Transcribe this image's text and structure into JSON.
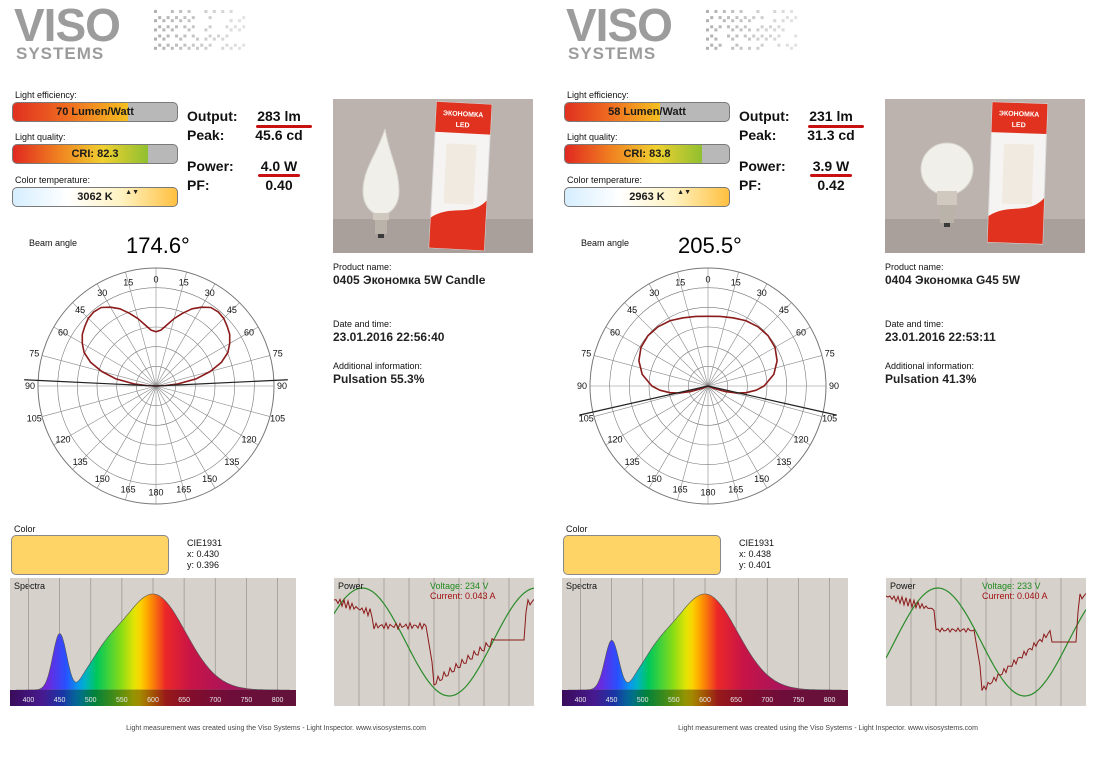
{
  "reports": [
    {
      "logo": {
        "main": "VISO",
        "sub": "SYSTEMS"
      },
      "efficiency": {
        "label": "Light efficiency:",
        "value": "70 Lumen/Watt",
        "level": 0.7
      },
      "quality": {
        "label": "Light quality:",
        "value": "CRI:  82.3",
        "level": 0.823
      },
      "cct": {
        "label": "Color temperature:",
        "value": "3062 K",
        "arrows": "▲▼"
      },
      "metrics": [
        {
          "label": "Output:",
          "value": "283 lm",
          "underline": true
        },
        {
          "label": "Peak:",
          "value": "45.6 cd",
          "underline": false
        },
        {
          "label": "Power:",
          "value": "4.0 W",
          "underline": true
        },
        {
          "label": "PF:",
          "value": "0.40",
          "underline": false
        }
      ],
      "product_label": "Product name:",
      "product_name": "0405 Экономка 5W Candle",
      "datetime_label": "Date and time:",
      "datetime": "23.01.2016   22:56:40",
      "additional_label": "Additional information:",
      "additional": "Pulsation 55.3%",
      "box_text": {
        "brand": "ЭКОНОМКА",
        "type": "LED"
      },
      "beam": {
        "label": "Beam angle",
        "value": "174.6°"
      },
      "polar": {
        "tick_labels": [
          "0",
          "15",
          "15",
          "30",
          "30",
          "45",
          "45",
          "60",
          "60",
          "75",
          "75",
          "90",
          "90",
          "105",
          "105",
          "120",
          "120",
          "135",
          "135",
          "150",
          "150",
          "165",
          "165",
          "180"
        ],
        "curve": [
          [
            0,
            0.56
          ],
          [
            5,
            0.58
          ],
          [
            10,
            0.64
          ],
          [
            15,
            0.72
          ],
          [
            20,
            0.8
          ],
          [
            25,
            0.88
          ],
          [
            30,
            0.94
          ],
          [
            35,
            0.99
          ],
          [
            40,
            1.0
          ],
          [
            45,
            0.99
          ],
          [
            50,
            0.96
          ],
          [
            55,
            0.93
          ],
          [
            60,
            0.88
          ],
          [
            65,
            0.82
          ],
          [
            70,
            0.72
          ],
          [
            75,
            0.58
          ],
          [
            80,
            0.42
          ],
          [
            85,
            0.22
          ],
          [
            87.3,
            0.1
          ],
          [
            90,
            0.0
          ]
        ],
        "beam_half_angle": 87.3
      },
      "color": {
        "label": "Color",
        "swatch": "#ffd466",
        "cie_label": "CIE1931",
        "x": "x: 0.430",
        "y": "y: 0.396"
      },
      "spectra": {
        "title": "Spectra",
        "ticks": [
          "400",
          "450",
          "500",
          "550",
          "600",
          "650",
          "700",
          "750",
          "800"
        ]
      },
      "power": {
        "title": "Power",
        "voltage": "Voltage: 234 V",
        "current": "Current: 0.043 A"
      },
      "footer": "Light measurement was created using the Viso Systems - Light Inspector. www.visosystems.com"
    },
    {
      "logo": {
        "main": "VISO",
        "sub": "SYSTEMS"
      },
      "efficiency": {
        "label": "Light efficiency:",
        "value": "58 Lumen/Watt",
        "level": 0.58
      },
      "quality": {
        "label": "Light quality:",
        "value": "CRI:  83.8",
        "level": 0.838
      },
      "cct": {
        "label": "Color temperature:",
        "value": "2963 K",
        "arrows": "▲▼"
      },
      "metrics": [
        {
          "label": "Output:",
          "value": "231 lm",
          "underline": true
        },
        {
          "label": "Peak:",
          "value": "31.3 cd",
          "underline": false
        },
        {
          "label": "Power:",
          "value": "3.9 W",
          "underline": true
        },
        {
          "label": "PF:",
          "value": "0.42",
          "underline": false
        }
      ],
      "product_label": "Product name:",
      "product_name": "0404 Экономка G45 5W",
      "datetime_label": "Date and time:",
      "datetime": "23.01.2016   22:53:11",
      "additional_label": "Additional information:",
      "additional": "Pulsation 41.3%",
      "box_text": {
        "brand": "ЭКОНОМКА",
        "type": "LED"
      },
      "beam": {
        "label": "Beam angle",
        "value": "205.5°"
      },
      "polar": {
        "tick_labels": [
          "0",
          "15",
          "15",
          "30",
          "30",
          "45",
          "45",
          "60",
          "60",
          "75",
          "75",
          "90",
          "90",
          "105",
          "105",
          "120",
          "120",
          "135",
          "135",
          "150",
          "150",
          "165",
          "165",
          "180"
        ],
        "curve": [
          [
            0,
            0.72
          ],
          [
            10,
            0.73
          ],
          [
            20,
            0.75
          ],
          [
            30,
            0.78
          ],
          [
            40,
            0.8
          ],
          [
            50,
            0.81
          ],
          [
            60,
            0.8
          ],
          [
            70,
            0.76
          ],
          [
            80,
            0.69
          ],
          [
            90,
            0.58
          ],
          [
            95,
            0.5
          ],
          [
            100,
            0.4
          ],
          [
            104,
            0.3
          ],
          [
            108,
            0.18
          ],
          [
            112,
            0.06
          ],
          [
            114,
            0.0
          ]
        ],
        "beam_half_angle": 102.75
      },
      "color": {
        "label": "Color",
        "swatch": "#ffd466",
        "cie_label": "CIE1931",
        "x": "x: 0.438",
        "y": "y: 0.401"
      },
      "spectra": {
        "title": "Spectra",
        "ticks": [
          "400",
          "450",
          "500",
          "550",
          "600",
          "650",
          "700",
          "750",
          "800"
        ]
      },
      "power": {
        "title": "Power",
        "voltage": "Voltage: 233 V",
        "current": "Current: 0.040 A"
      },
      "footer": "Light measurement was created using the Viso Systems - Light Inspector. www.visosystems.com"
    }
  ]
}
